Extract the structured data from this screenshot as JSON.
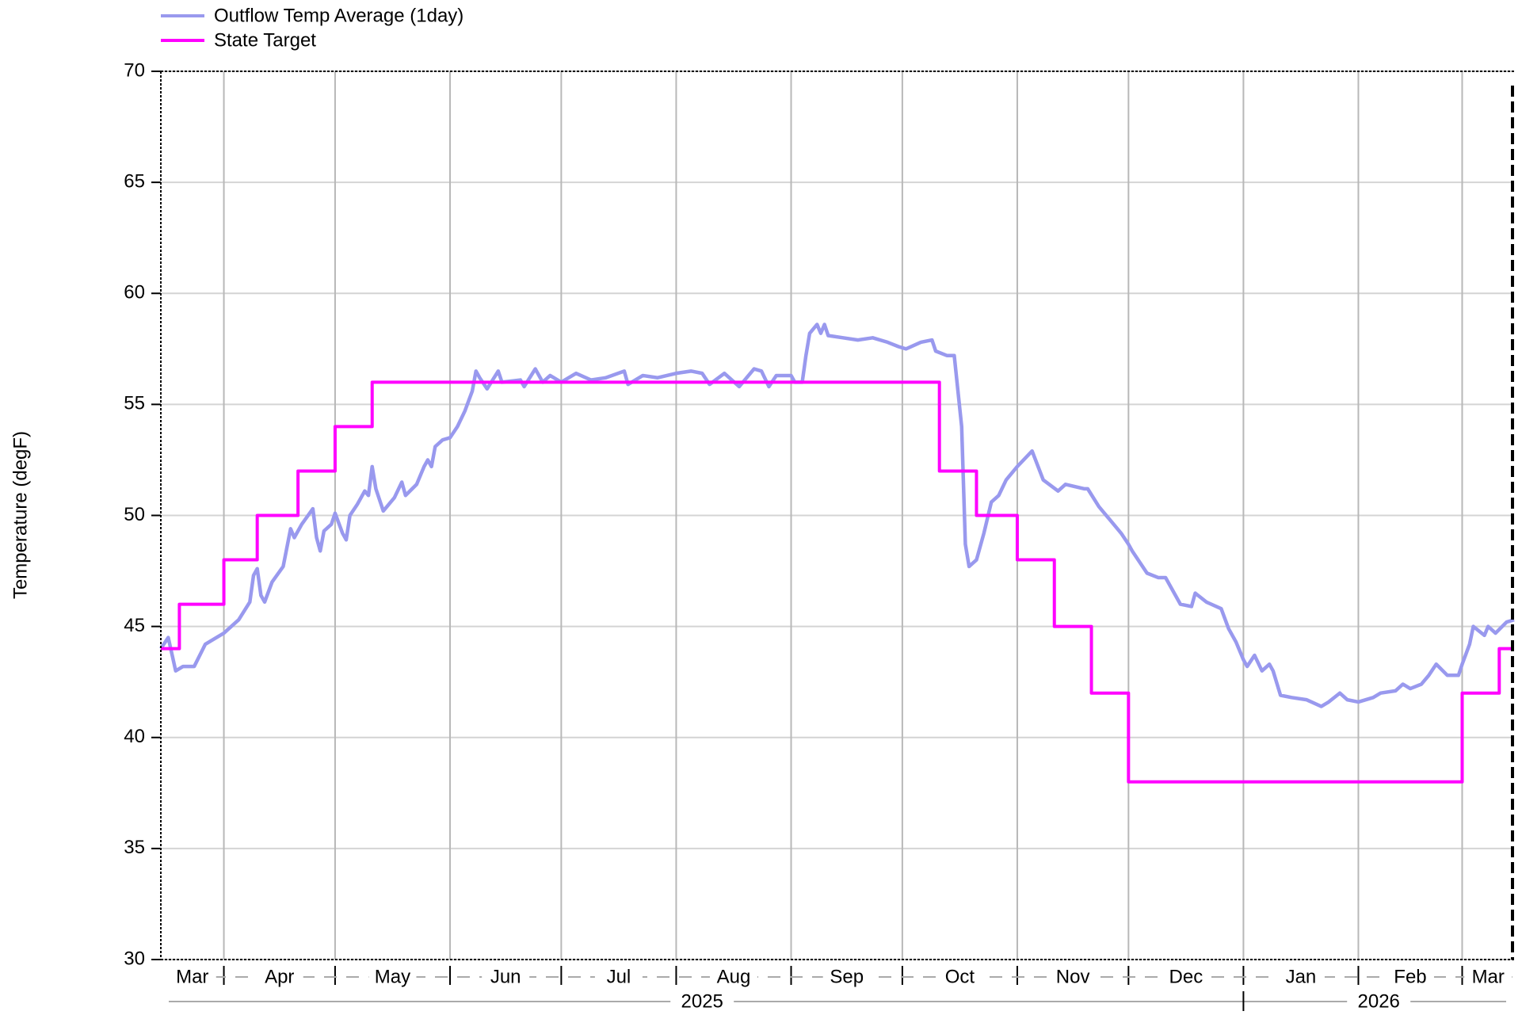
{
  "chart_data": {
    "type": "line",
    "y_label": "Temperature (degF)",
    "ylim": [
      30,
      70
    ],
    "yticks": [
      30,
      35,
      40,
      45,
      50,
      55,
      60,
      65,
      70
    ],
    "grid": true,
    "xlim": [
      "2025-03-15",
      "2026-03-15"
    ],
    "xticks": [
      "2025-04",
      "2025-05",
      "2025-06",
      "2025-07",
      "2025-08",
      "2025-09",
      "2025-10",
      "2025-11",
      "2025-12",
      "2026-01",
      "2026-02",
      "2026-03"
    ],
    "months": [
      "Mar",
      "Apr",
      "May",
      "Jun",
      "Jul",
      "Aug",
      "Sep",
      "Oct",
      "Nov",
      "Dec",
      "Jan",
      "Feb",
      "Mar"
    ],
    "years": [
      {
        "label": "2025",
        "start": "2025-03-15",
        "end": "2026-01"
      },
      {
        "label": "2026",
        "start": "2026-01",
        "end": "2026-03-15"
      }
    ],
    "legend": "top-left",
    "series": [
      {
        "name": "Outflow Temp Average (1day)",
        "color": "#9999ee",
        "x": [
          "2025-03-15",
          "2025-03-17",
          "2025-03-19",
          "2025-03-21",
          "2025-03-24",
          "2025-03-27",
          "2025-03-29",
          "2025-04-01",
          "2025-04-05",
          "2025-04-08",
          "2025-04-09",
          "2025-04-10",
          "2025-04-11",
          "2025-04-12",
          "2025-04-14",
          "2025-04-17",
          "2025-04-19",
          "2025-04-20",
          "2025-04-22",
          "2025-04-25",
          "2025-04-26",
          "2025-04-27",
          "2025-04-28",
          "2025-04-30",
          "2025-05-01",
          "2025-05-03",
          "2025-05-04",
          "2025-05-05",
          "2025-05-07",
          "2025-05-09",
          "2025-05-10",
          "2025-05-11",
          "2025-05-12",
          "2025-05-14",
          "2025-05-17",
          "2025-05-19",
          "2025-05-20",
          "2025-05-23",
          "2025-05-25",
          "2025-05-26",
          "2025-05-27",
          "2025-05-28",
          "2025-05-30",
          "2025-06-01",
          "2025-06-03",
          "2025-06-05",
          "2025-06-07",
          "2025-06-08",
          "2025-06-09",
          "2025-06-11",
          "2025-06-14",
          "2025-06-15",
          "2025-06-20",
          "2025-06-21",
          "2025-06-24",
          "2025-06-26",
          "2025-06-28",
          "2025-07-01",
          "2025-07-05",
          "2025-07-09",
          "2025-07-13",
          "2025-07-18",
          "2025-07-19",
          "2025-07-23",
          "2025-07-27",
          "2025-08-01",
          "2025-08-05",
          "2025-08-08",
          "2025-08-10",
          "2025-08-14",
          "2025-08-18",
          "2025-08-22",
          "2025-08-24",
          "2025-08-26",
          "2025-08-28",
          "2025-09-01",
          "2025-09-02",
          "2025-09-04",
          "2025-09-05",
          "2025-09-06",
          "2025-09-08",
          "2025-09-09",
          "2025-09-10",
          "2025-09-11",
          "2025-09-15",
          "2025-09-19",
          "2025-09-23",
          "2025-09-27",
          "2025-09-30",
          "2025-10-02",
          "2025-10-06",
          "2025-10-09",
          "2025-10-10",
          "2025-10-13",
          "2025-10-15",
          "2025-10-17",
          "2025-10-18",
          "2025-10-19",
          "2025-10-21",
          "2025-10-23",
          "2025-10-25",
          "2025-10-27",
          "2025-10-29",
          "2025-11-01",
          "2025-11-05",
          "2025-11-08",
          "2025-11-12",
          "2025-11-14",
          "2025-11-19",
          "2025-11-20",
          "2025-11-23",
          "2025-11-26",
          "2025-11-29",
          "2025-12-01",
          "2025-12-02",
          "2025-12-04",
          "2025-12-06",
          "2025-12-09",
          "2025-12-11",
          "2025-12-15",
          "2025-12-18",
          "2025-12-19",
          "2025-12-22",
          "2025-12-26",
          "2025-12-28",
          "2025-12-30",
          "2026-01-01",
          "2026-01-02",
          "2026-01-04",
          "2026-01-06",
          "2026-01-08",
          "2026-01-09",
          "2026-01-11",
          "2026-01-14",
          "2026-01-18",
          "2026-01-22",
          "2026-01-24",
          "2026-01-27",
          "2026-01-29",
          "2026-02-01",
          "2026-02-05",
          "2026-02-07",
          "2026-02-11",
          "2026-02-13",
          "2026-02-15",
          "2026-02-18",
          "2026-02-20",
          "2026-02-22",
          "2026-02-25",
          "2026-02-28",
          "2026-03-01",
          "2026-03-03",
          "2026-03-04",
          "2026-03-07",
          "2026-03-08",
          "2026-03-10",
          "2026-03-13",
          "2026-03-15"
        ],
        "values": [
          44.0,
          44.5,
          43.0,
          43.2,
          43.2,
          44.2,
          44.4,
          44.7,
          45.3,
          46.1,
          47.3,
          47.6,
          46.4,
          46.1,
          47.0,
          47.7,
          49.4,
          49.0,
          49.6,
          50.3,
          49.0,
          48.4,
          49.3,
          49.6,
          50.1,
          49.2,
          48.9,
          50.0,
          50.5,
          51.1,
          50.9,
          52.2,
          51.2,
          50.2,
          50.8,
          51.5,
          50.9,
          51.4,
          52.2,
          52.5,
          52.2,
          53.1,
          53.4,
          53.5,
          54.0,
          54.7,
          55.6,
          56.5,
          56.2,
          55.7,
          56.5,
          56.0,
          56.1,
          55.8,
          56.6,
          56.0,
          56.3,
          56.0,
          56.4,
          56.1,
          56.2,
          56.5,
          55.9,
          56.3,
          56.2,
          56.4,
          56.5,
          56.4,
          55.9,
          56.4,
          55.8,
          56.6,
          56.5,
          55.8,
          56.3,
          56.3,
          56.0,
          56.0,
          57.2,
          58.2,
          58.6,
          58.2,
          58.6,
          58.1,
          58.0,
          57.9,
          58.0,
          57.8,
          57.6,
          57.5,
          57.8,
          57.9,
          57.4,
          57.2,
          57.2,
          54.0,
          48.7,
          47.7,
          48.0,
          49.2,
          50.6,
          50.9,
          51.6,
          52.2,
          52.9,
          51.6,
          51.1,
          51.4,
          51.2,
          51.2,
          50.4,
          49.8,
          49.2,
          48.7,
          48.4,
          47.9,
          47.4,
          47.2,
          47.2,
          46.0,
          45.9,
          46.5,
          46.1,
          45.8,
          44.9,
          44.3,
          43.5,
          43.2,
          43.7,
          43.0,
          43.3,
          43.0,
          41.9,
          41.8,
          41.7,
          41.4,
          41.6,
          42.0,
          41.7,
          41.6,
          41.8,
          42.0,
          42.1,
          42.4,
          42.2,
          42.4,
          42.8,
          43.3,
          42.8,
          42.8,
          43.3,
          44.2,
          45.0,
          44.6,
          45.0,
          44.7,
          45.2,
          45.3
        ]
      },
      {
        "name": "State Target",
        "color": "#ff00ff",
        "step": true,
        "x": [
          "2025-03-15",
          "2025-03-20",
          "2025-04-01",
          "2025-04-10",
          "2025-04-21",
          "2025-05-01",
          "2025-05-11",
          "2025-10-11",
          "2025-10-21",
          "2025-11-01",
          "2025-11-11",
          "2025-11-21",
          "2025-12-01",
          "2026-03-01",
          "2026-03-11"
        ],
        "values": [
          44,
          46,
          48,
          50,
          52,
          54,
          56,
          52,
          50,
          48,
          45,
          42,
          38,
          42,
          44
        ]
      }
    ]
  }
}
